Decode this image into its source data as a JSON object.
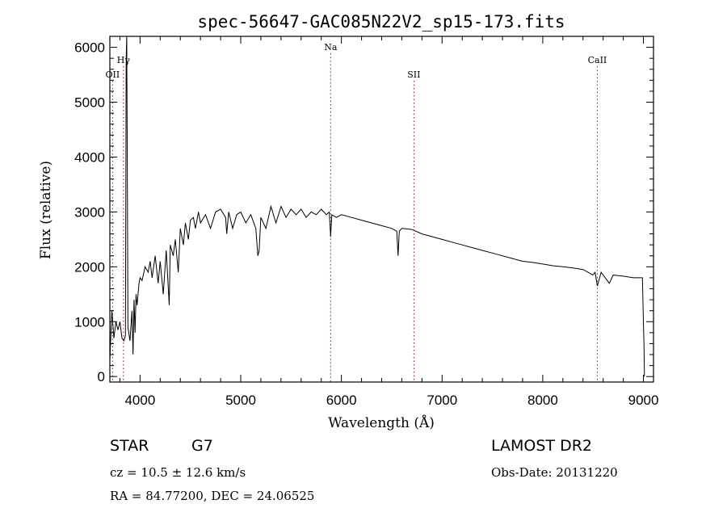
{
  "chart_data": {
    "type": "line",
    "title": "spec-56647-GAC085N22V2_sp15-173.fits",
    "xlabel": "Wavelength (Å)",
    "ylabel": "Flux (relative)",
    "xlim": [
      3700,
      9100
    ],
    "ylim": [
      -100,
      6200
    ],
    "xticks": [
      4000,
      5000,
      6000,
      7000,
      8000,
      9000
    ],
    "yticks": [
      0,
      1000,
      2000,
      3000,
      4000,
      5000,
      6000
    ],
    "series": [
      {
        "color": "#000000",
        "x": [
          3700,
          3720,
          3740,
          3760,
          3780,
          3800,
          3820,
          3840,
          3855,
          3862,
          3868,
          3880,
          3900,
          3920,
          3930,
          3940,
          3950,
          3960,
          3970,
          3990,
          4000,
          4020,
          4050,
          4080,
          4100,
          4120,
          4150,
          4180,
          4200,
          4230,
          4260,
          4290,
          4300,
          4330,
          4350,
          4380,
          4400,
          4430,
          4450,
          4480,
          4500,
          4530,
          4550,
          4580,
          4600,
          4650,
          4700,
          4750,
          4800,
          4850,
          4861,
          4880,
          4920,
          4960,
          5000,
          5050,
          5100,
          5150,
          5170,
          5183,
          5200,
          5250,
          5300,
          5350,
          5400,
          5450,
          5500,
          5550,
          5600,
          5650,
          5700,
          5750,
          5800,
          5850,
          5880,
          5893,
          5905,
          5950,
          6000,
          6100,
          6200,
          6300,
          6400,
          6500,
          6550,
          6563,
          6575,
          6600,
          6700,
          6800,
          6900,
          7000,
          7100,
          7200,
          7300,
          7400,
          7500,
          7600,
          7700,
          7800,
          7900,
          8000,
          8100,
          8200,
          8300,
          8400,
          8450,
          8498,
          8520,
          8542,
          8580,
          8620,
          8662,
          8700,
          8800,
          8900,
          8990,
          9000,
          9005,
          9010
        ],
        "y": [
          300,
          1200,
          700,
          1000,
          850,
          1000,
          700,
          650,
          750,
          5800,
          6200,
          900,
          650,
          1200,
          400,
          1400,
          800,
          1500,
          1300,
          1700,
          1800,
          1750,
          2000,
          1900,
          2100,
          1800,
          2200,
          1700,
          2100,
          1500,
          2300,
          1300,
          2400,
          2200,
          2500,
          1900,
          2700,
          2400,
          2800,
          2500,
          2850,
          2900,
          2700,
          3000,
          2800,
          2950,
          2700,
          3000,
          3050,
          2900,
          2600,
          3000,
          2700,
          2950,
          3000,
          2800,
          2950,
          2700,
          2200,
          2300,
          2900,
          2700,
          3100,
          2800,
          3100,
          2900,
          3050,
          2950,
          3050,
          2900,
          3000,
          2950,
          3050,
          2950,
          3000,
          2550,
          2950,
          2900,
          2950,
          2900,
          2850,
          2800,
          2750,
          2700,
          2650,
          2200,
          2650,
          2700,
          2680,
          2600,
          2550,
          2500,
          2450,
          2400,
          2350,
          2300,
          2250,
          2200,
          2150,
          2100,
          2080,
          2050,
          2020,
          2000,
          1980,
          1950,
          1900,
          1850,
          1900,
          1650,
          1900,
          1800,
          1700,
          1850,
          1830,
          1800,
          1800,
          1000,
          600,
          0
        ]
      }
    ],
    "annotations": [
      {
        "label": "OII",
        "x": 3727,
        "row": 3
      },
      {
        "label": "Hγ",
        "x": 3835,
        "row": 2
      },
      {
        "label": "Na",
        "x": 5893,
        "row": 1
      },
      {
        "label": "SII",
        "x": 6720,
        "row": 3
      },
      {
        "label": "CaII",
        "x": 8542,
        "row": 2
      }
    ],
    "grid": false,
    "line_marker_color": "#cc0000"
  },
  "info": {
    "object_type": "STAR",
    "subclass": "G7",
    "survey": "LAMOST DR2",
    "redshift": "cz = 10.5 ± 12.6 km/s",
    "obs_date": "Obs-Date: 20131220",
    "coords": "RA =  84.77200, DEC =  24.06525"
  }
}
